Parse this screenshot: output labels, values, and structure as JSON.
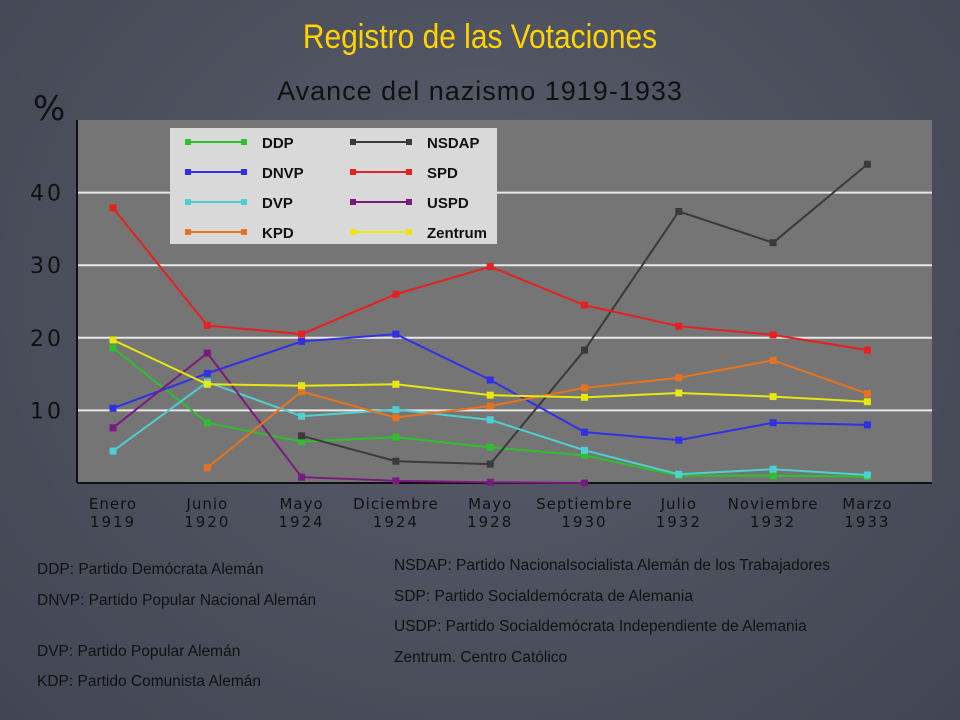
{
  "slide_title": "Registro de las Votaciones",
  "colors": {
    "DDP": "#2fbf2f",
    "NSDAP": "#3a3a3a",
    "DNVP": "#3030e6",
    "SPD": "#e62020",
    "DVP": "#4fd0d0",
    "USPD": "#7a1a80",
    "KPD": "#e8731e",
    "Zentrum": "#e8e810"
  },
  "chart_data": {
    "type": "line",
    "title": "Avance del nazismo 1919-1933",
    "ylabel": "%",
    "ylim": [
      0,
      50
    ],
    "yticks": [
      "10",
      "20",
      "30",
      "40"
    ],
    "grid": true,
    "legend_position": "top-left",
    "categories": [
      [
        "Enero",
        "1919"
      ],
      [
        "Junio",
        "1920"
      ],
      [
        "Mayo",
        "1924"
      ],
      [
        "Diciembre",
        "1924"
      ],
      [
        "Mayo",
        "1928"
      ],
      [
        "Septiembre",
        "1930"
      ],
      [
        "Julio",
        "1932"
      ],
      [
        "Noviembre",
        "1932"
      ],
      [
        "Marzo",
        "1933"
      ]
    ],
    "series": [
      {
        "name": "DDP",
        "values": [
          18.6,
          8.3,
          5.7,
          6.3,
          4.9,
          3.8,
          1.0,
          1.0,
          0.9
        ]
      },
      {
        "name": "NSDAP",
        "values": [
          null,
          null,
          6.5,
          3.0,
          2.6,
          18.3,
          37.4,
          33.1,
          43.9
        ]
      },
      {
        "name": "DNVP",
        "values": [
          10.3,
          15.1,
          19.5,
          20.5,
          14.2,
          7.0,
          5.9,
          8.3,
          8.0
        ]
      },
      {
        "name": "SPD",
        "values": [
          37.9,
          21.7,
          20.5,
          26.0,
          29.8,
          24.5,
          21.6,
          20.4,
          18.3
        ]
      },
      {
        "name": "DVP",
        "values": [
          4.4,
          13.9,
          9.2,
          10.1,
          8.7,
          4.5,
          1.2,
          1.9,
          1.1
        ]
      },
      {
        "name": "USPD",
        "values": [
          7.6,
          17.9,
          0.8,
          0.3,
          0.1,
          0.0,
          null,
          null,
          null
        ]
      },
      {
        "name": "KPD",
        "values": [
          null,
          2.1,
          12.6,
          9.0,
          10.6,
          13.1,
          14.5,
          16.9,
          12.3
        ]
      },
      {
        "name": "Zentrum",
        "values": [
          19.7,
          13.6,
          13.4,
          13.6,
          12.1,
          11.8,
          12.4,
          11.9,
          11.2
        ]
      }
    ]
  },
  "glossary_left": [
    "DDP: Partido Demócrata Alemán",
    "DNVP: Partido Popular Nacional Alemán",
    "DVP: Partido Popular Alemán",
    "KDP: Partido Comunista Alemán"
  ],
  "glossary_right": [
    "NSDAP: Partido Nacionalsocialista Alemán de los Trabajadores",
    "SDP: Partido Socialdemócrata de Alemania",
    "USDP: Partido Socialdemócrata Independiente de Alemania",
    "Zentrum. Centro Católico"
  ]
}
